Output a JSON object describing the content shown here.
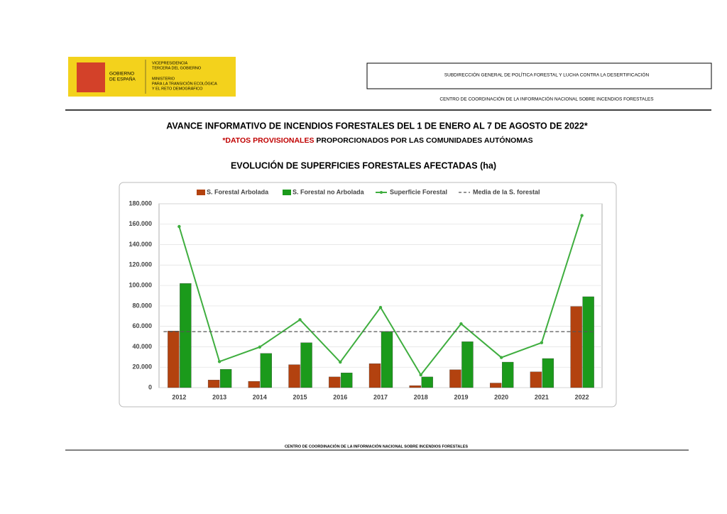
{
  "header": {
    "logo_name": [
      "GOBIERNO",
      "DE ESPAÑA"
    ],
    "logo_vice": [
      "VICEPRESIDENCIA",
      "TERCERA DEL GOBIERNO"
    ],
    "logo_ministry": [
      "MINISTERIO",
      "PARA LA TRANSICIÓN ECOLÓGICA",
      "Y EL RETO DEMOGRÁFICO"
    ],
    "subdirection": "SUBDIRECCIÓN GENERAL DE POLÍTICA FORESTAL Y LUCHA CONTRA LA DESERTIFICACIÓN",
    "center": "CENTRO DE COORDINACIÓN DE LA INFORMACIÓN NACIONAL SOBRE INCENDIOS FORESTALES"
  },
  "title": "AVANCE INFORMATIVO DE INCENDIOS FORESTALES DEL 1 DE ENERO AL 7 DE AGOSTO DE 2022*",
  "subtitle": {
    "highlight": "*DATOS PROVISIONALES",
    "rest": "PROPORCIONADOS POR LAS COMUNIDADES AUTÓNOMAS"
  },
  "chart_data": {
    "type": "bar",
    "title": "EVOLUCIÓN DE SUPERFICIES FORESTALES AFECTADAS (ha)",
    "categories": [
      "2012",
      "2013",
      "2014",
      "2015",
      "2016",
      "2017",
      "2018",
      "2019",
      "2020",
      "2021",
      "2022"
    ],
    "series": [
      {
        "name": "S. Forestal Arbolada",
        "type": "bar",
        "color": "#b3420f",
        "values": [
          55500,
          7500,
          6200,
          22500,
          10500,
          23500,
          2000,
          17500,
          4500,
          15500,
          79500
        ]
      },
      {
        "name": "S. Forestal no Arbolada",
        "type": "bar",
        "color": "#1b9a1b",
        "values": [
          102000,
          18000,
          33500,
          44000,
          14500,
          55000,
          10500,
          45000,
          25000,
          28500,
          89000
        ]
      },
      {
        "name": "Superficie Forestal",
        "type": "line",
        "color": "#3fae3f",
        "values": [
          157700,
          25500,
          39700,
          66500,
          25000,
          78500,
          12500,
          62500,
          29500,
          44000,
          168500
        ]
      }
    ],
    "mean": {
      "name": "Media de la S. forestal",
      "color": "#555555",
      "value": 54800
    },
    "ylim": [
      0,
      180000
    ],
    "yticks": [
      0,
      {
        "value": 20000,
        "label": "20.000"
      },
      {
        "value": 40000,
        "label": "40.000"
      },
      {
        "value": 60000,
        "label": "60.000"
      },
      {
        "value": 80000,
        "label": "80.000"
      },
      {
        "value": 100000,
        "label": "100.000"
      },
      {
        "value": 120000,
        "label": "120.000"
      },
      {
        "value": 140000,
        "label": "140.000"
      },
      {
        "value": 160000,
        "label": "160.000"
      },
      {
        "value": 180000,
        "label": "180.000"
      }
    ],
    "grid": true
  },
  "footer": "CENTRO DE COORDINACIÓN DE LA INFORMACIÓN NACIONAL SOBRE INCENDIOS FORESTALES"
}
